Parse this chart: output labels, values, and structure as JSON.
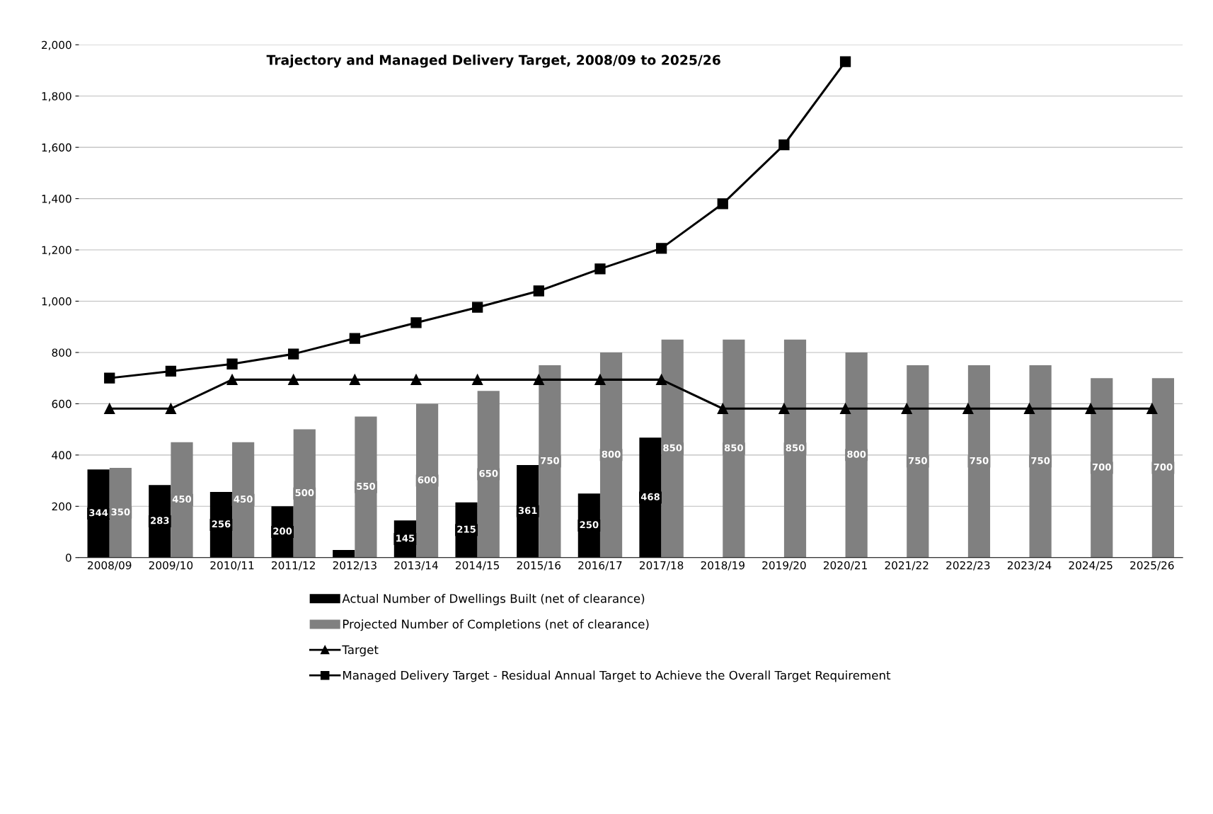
{
  "chart_data": {
    "type": "bar",
    "title": "Trajectory and Managed Delivery Target, 2008/09 to 2025/26",
    "categories": [
      "2008/09",
      "2009/10",
      "2010/11",
      "2011/12",
      "2012/13",
      "2013/14",
      "2014/15",
      "2015/16",
      "2016/17",
      "2017/18",
      "2018/19",
      "2019/20",
      "2020/21",
      "2021/22",
      "2022/23",
      "2023/24",
      "2024/25",
      "2025/26"
    ],
    "series": [
      {
        "name": "Actual Number of Dwellings Built (net of clearance)",
        "color": "#000000",
        "values": [
          344,
          283,
          256,
          200,
          30,
          145,
          215,
          361,
          250,
          468,
          null,
          null,
          null,
          null,
          null,
          null,
          null,
          null
        ],
        "value_labels": [
          "344",
          "283",
          "256",
          "200",
          null,
          "145",
          "215",
          "361",
          "250",
          "468",
          null,
          null,
          null,
          null,
          null,
          null,
          null,
          null
        ]
      },
      {
        "name": "Projected Number of Completions (net of clearance)",
        "color": "#808080",
        "values": [
          350,
          450,
          450,
          500,
          550,
          600,
          650,
          750,
          800,
          850,
          850,
          850,
          800,
          750,
          750,
          750,
          700,
          700
        ],
        "value_labels": [
          "350",
          "450",
          "450",
          "500",
          "550",
          "600",
          "650",
          "750",
          "800",
          "850",
          "850",
          "850",
          "800",
          "750",
          "750",
          "750",
          "700",
          "700"
        ]
      },
      {
        "name": "Target",
        "type": "line",
        "color": "#000000",
        "marker": "triangle",
        "values": [
          581,
          581,
          694,
          694,
          694,
          694,
          694,
          694,
          694,
          694,
          581,
          581,
          581,
          581,
          581,
          581,
          581,
          581
        ]
      },
      {
        "name": "Managed Delivery Target - Residual Annual Target to Achieve the Overall Target Requirement",
        "type": "line",
        "color": "#000000",
        "marker": "square",
        "values": [
          700,
          727,
          755,
          794,
          855,
          916,
          976,
          1040,
          1126,
          1206,
          1380,
          1610,
          1934,
          null,
          null,
          null,
          null,
          null
        ]
      }
    ],
    "ylim": [
      0,
      2000
    ],
    "yticks": [
      {
        "value": 0,
        "label": "0"
      },
      {
        "value": 200,
        "label": "200"
      },
      {
        "value": 400,
        "label": "400"
      },
      {
        "value": 600,
        "label": "600"
      },
      {
        "value": 800,
        "label": "800"
      },
      {
        "value": 1000,
        "label": "1,000"
      },
      {
        "value": 1200,
        "label": "1,200"
      },
      {
        "value": 1400,
        "label": "1,400"
      },
      {
        "value": 1600,
        "label": "1,600"
      },
      {
        "value": 1800,
        "label": "1,800"
      },
      {
        "value": 2000,
        "label": "2,000"
      }
    ],
    "grid": "y",
    "legend": "bottom"
  }
}
